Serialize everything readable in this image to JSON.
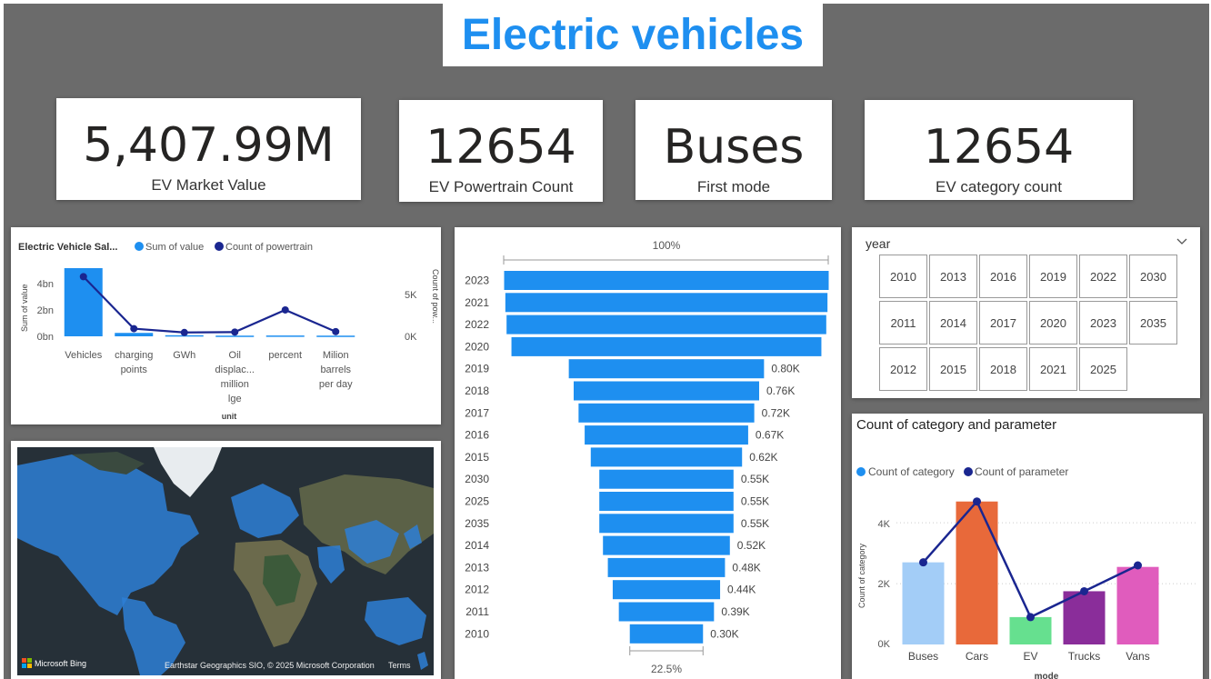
{
  "header": {
    "title": "Electric vehicles"
  },
  "kpis": [
    {
      "value": "5,407.99M",
      "label": "EV Market Value"
    },
    {
      "value": "12654",
      "label": "EV Powertrain Count"
    },
    {
      "value": "Buses",
      "label": "First mode"
    },
    {
      "value": "12654",
      "label": "EV category count"
    }
  ],
  "combo_chart": {
    "title": "Electric Vehicle Sal...",
    "legend": [
      "Sum of value",
      "Count of powertrain"
    ],
    "xlabel": "unit",
    "ylabel_left": "Sum of value",
    "ylabel_right": "Count of pow...",
    "left_ticks": [
      "4bn",
      "2bn",
      "0bn"
    ],
    "right_ticks": [
      "5K",
      "0K"
    ],
    "category_lines": [
      [
        "Vehicles"
      ],
      [
        "charging",
        "points"
      ],
      [
        "GWh"
      ],
      [
        "Oil",
        "displac...",
        "million",
        "lge"
      ],
      [
        "percent"
      ],
      [
        "Milion",
        "barrels",
        "per day"
      ]
    ]
  },
  "funnel": {
    "top_label": "100%",
    "bottom_label": "22.5%"
  },
  "year_slicer": {
    "title": "year",
    "options": [
      "2010",
      "2013",
      "2016",
      "2019",
      "2022",
      "2030",
      "2011",
      "2014",
      "2017",
      "2020",
      "2023",
      "2035",
      "2012",
      "2015",
      "2018",
      "2021",
      "2025"
    ]
  },
  "mode_chart": {
    "title": "Count of category and  parameter",
    "legend": [
      "Count of category",
      "Count of parameter"
    ],
    "xlabel": "mode",
    "ylabel": "Count of category",
    "y_ticks": [
      "4K",
      "2K",
      "0K"
    ]
  },
  "map": {
    "logo": "Microsoft Bing",
    "attribution": "Earthstar Geographics SIO, © 2025 Microsoft Corporation",
    "terms": "Terms"
  },
  "colors": {
    "accent": "#1e8ff0",
    "navy": "#1a2690",
    "canvas": "#6b6b6b"
  },
  "chart_data": [
    {
      "type": "bar",
      "title": "Electric Vehicle Sal...",
      "categories": [
        "Vehicles",
        "charging points",
        "GWh",
        "Oil displac... million lge",
        "percent",
        "Milion barrels per day"
      ],
      "series": [
        {
          "name": "Sum of value",
          "type": "bar",
          "axis": "left",
          "values": [
            5.0,
            0.25,
            0.08,
            0.05,
            0.06,
            0.05
          ]
        },
        {
          "name": "Count of powertrain",
          "type": "line",
          "axis": "right",
          "values": [
            7000,
            900,
            450,
            500,
            3100,
            550
          ]
        }
      ],
      "xlabel": "unit",
      "ylabel": "Sum of value",
      "ylim": [
        0,
        5
      ],
      "y2lim": [
        0,
        8000
      ]
    },
    {
      "type": "bar",
      "orientation": "funnel",
      "categories": [
        "2023",
        "2021",
        "2022",
        "2020",
        "2019",
        "2018",
        "2017",
        "2016",
        "2015",
        "2030",
        "2025",
        "2035",
        "2014",
        "2013",
        "2012",
        "2011",
        "2010"
      ],
      "values": [
        1.33,
        1.32,
        1.31,
        1.27,
        0.8,
        0.76,
        0.72,
        0.67,
        0.62,
        0.55,
        0.55,
        0.55,
        0.52,
        0.48,
        0.44,
        0.39,
        0.3
      ],
      "data_labels": [
        "",
        "",
        "",
        "",
        "0.80K",
        "0.76K",
        "0.72K",
        "0.67K",
        "0.62K",
        "0.55K",
        "0.55K",
        "0.55K",
        "0.52K",
        "0.48K",
        "0.44K",
        "0.39K",
        "0.30K"
      ],
      "top_label": "100%",
      "bottom_label": "22.5%"
    },
    {
      "type": "bar",
      "title": "Count of category and  parameter",
      "categories": [
        "Buses",
        "Cars",
        "EV",
        "Trucks",
        "Vans"
      ],
      "bar_colors": [
        "#a3cdf7",
        "#e8693a",
        "#66e08f",
        "#8a2d9a",
        "#e05cbd"
      ],
      "series": [
        {
          "name": "Count of category",
          "type": "bar",
          "values": [
            2700,
            4700,
            900,
            1750,
            2550
          ]
        },
        {
          "name": "Count of parameter",
          "type": "line",
          "values": [
            2700,
            4700,
            900,
            1750,
            2600
          ]
        }
      ],
      "xlabel": "mode",
      "ylabel": "Count of category",
      "ylim": [
        0,
        5200
      ]
    }
  ]
}
